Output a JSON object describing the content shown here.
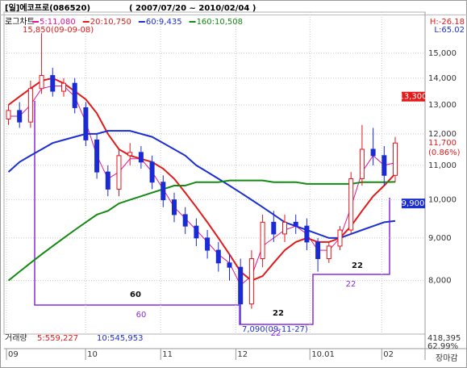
{
  "chart_data": {
    "type": "candlestick",
    "title": "[일]에코프로(086520)",
    "date_range": "( 2007/07/20 ~ 2010/02/04 )",
    "scale_label": "로그차트",
    "high_ratio": "H:-26.18",
    "low_ratio": "L:65.02",
    "log_scale": true,
    "up_color": "#e8141c",
    "down_color": "#1a2bd6",
    "open": [
      12500,
      12800,
      12400,
      13600,
      14100,
      13500,
      13800,
      12900,
      11800,
      10800,
      10300,
      11300,
      11400,
      11100,
      10500,
      10000,
      9600,
      9300,
      9000,
      8700,
      8400,
      8300,
      7500,
      8500,
      9400,
      9100,
      9400,
      9300,
      8900,
      8500,
      8800,
      9200,
      10600,
      11500,
      11300,
      10700
    ],
    "high": [
      13000,
      13100,
      13900,
      15850,
      14400,
      14000,
      14000,
      13100,
      12000,
      11000,
      11500,
      11700,
      11600,
      11300,
      10700,
      10200,
      9800,
      9500,
      9200,
      8900,
      8600,
      8500,
      8700,
      9600,
      9700,
      9600,
      9600,
      9500,
      9000,
      8900,
      9300,
      10800,
      12300,
      12200,
      11600,
      11900
    ],
    "low": [
      12300,
      12200,
      12200,
      13400,
      13300,
      13300,
      12700,
      11600,
      10600,
      10100,
      10100,
      11000,
      10900,
      10300,
      9800,
      9400,
      9100,
      8800,
      8500,
      8200,
      8000,
      7090,
      7400,
      8300,
      8900,
      8900,
      9100,
      8700,
      8200,
      8400,
      8700,
      9100,
      10400,
      11000,
      10400,
      10500
    ],
    "close": [
      12800,
      12400,
      13600,
      14100,
      13500,
      13800,
      12900,
      11800,
      10800,
      10300,
      11300,
      11400,
      11100,
      10500,
      10000,
      9600,
      9300,
      9000,
      8700,
      8400,
      8300,
      7500,
      8500,
      9400,
      9100,
      9400,
      9300,
      8900,
      8500,
      8800,
      9200,
      10600,
      11500,
      11300,
      10700,
      11700
    ],
    "series": [
      {
        "name": "5:11,080",
        "color": "#e0159a",
        "values": [
          12600,
          12600,
          13000,
          13600,
          13700,
          13700,
          13300,
          12400,
          11300,
          10600,
          10800,
          11200,
          11200,
          10800,
          10300,
          9800,
          9500,
          9200,
          8900,
          8600,
          8400,
          7900,
          8100,
          8800,
          9000,
          9200,
          9300,
          9100,
          8700,
          8700,
          9000,
          9800,
          10800,
          11300,
          11000,
          11080
        ]
      },
      {
        "name": "20:10,750",
        "color": "#e21a1a",
        "values": [
          13000,
          13300,
          13600,
          13900,
          14000,
          13800,
          13500,
          13200,
          12700,
          12000,
          11500,
          11300,
          11200,
          11100,
          10900,
          10600,
          10200,
          9800,
          9400,
          9000,
          8600,
          8200,
          8000,
          8100,
          8400,
          8700,
          8900,
          9000,
          8900,
          8900,
          9000,
          9300,
          9700,
          10100,
          10400,
          10750
        ]
      },
      {
        "name": "60:9,435",
        "color": "#1c2fd0",
        "values": [
          10800,
          11100,
          11300,
          11500,
          11700,
          11800,
          11900,
          12000,
          12000,
          12100,
          12100,
          12100,
          12000,
          11900,
          11700,
          11500,
          11300,
          11000,
          10800,
          10600,
          10400,
          10200,
          10000,
          9800,
          9600,
          9400,
          9300,
          9200,
          9100,
          9000,
          9000,
          9100,
          9200,
          9300,
          9400,
          9435
        ]
      },
      {
        "name": "160:10,508",
        "color": "#138a12",
        "values": [
          8000,
          8200,
          8400,
          8600,
          8800,
          9000,
          9200,
          9400,
          9600,
          9700,
          9900,
          10000,
          10100,
          10200,
          10300,
          10400,
          10400,
          10500,
          10500,
          10500,
          10550,
          10550,
          10550,
          10550,
          10500,
          10500,
          10500,
          10450,
          10450,
          10450,
          10450,
          10450,
          10500,
          10500,
          10500,
          10508
        ]
      }
    ],
    "ylim": [
      6900,
      16800
    ],
    "yticks": [
      {
        "value": 8000,
        "label": "8,000"
      },
      {
        "value": 9000,
        "label": "9,000"
      },
      {
        "value": 10000,
        "label": "10,000"
      },
      {
        "value": 11000,
        "label": "11,000"
      },
      {
        "value": 12000,
        "label": "12,000"
      },
      {
        "value": 13000,
        "label": "13,000"
      },
      {
        "value": 14000,
        "label": "14,000"
      },
      {
        "value": 15000,
        "label": "15,000"
      }
    ],
    "xlim": [
      -0.4,
      37.7
    ],
    "xticks": [
      {
        "value": 0.84,
        "label": "09"
      },
      {
        "value": 8.0,
        "label": "10"
      },
      {
        "value": 14.8,
        "label": "11"
      },
      {
        "value": 21.6,
        "label": "12"
      },
      {
        "value": 28.3,
        "label": "10.01"
      },
      {
        "value": 34.8,
        "label": "02"
      }
    ],
    "grid": true,
    "price_labels": [
      {
        "value": 13300,
        "label": "13,300",
        "color": "#e21a1a",
        "boxed": true
      },
      {
        "value": 11700,
        "label": "11,700",
        "color": "#e21a1a",
        "boxed": false
      },
      {
        "value": 9900,
        "label": "9,900",
        "color": "#1c2fd0",
        "boxed": true
      }
    ],
    "change_label": "(0.86%)",
    "annotations": [
      "15,850(09-09-08)",
      "7,090(09-11-27)",
      "60",
      "60",
      "22",
      "22",
      "22",
      "22"
    ],
    "volume": {
      "label": "거래량",
      "ma5": "5:559,227",
      "ma10": "10:545,953",
      "last": "418,395",
      "ratio": "62.99%"
    },
    "status": "장마감"
  }
}
